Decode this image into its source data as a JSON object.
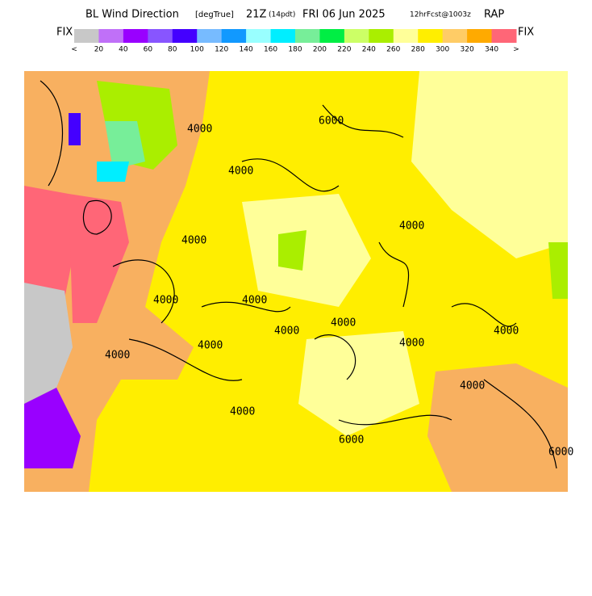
{
  "header": {
    "title": "BL Wind Direction",
    "units": "[degTrue]",
    "valid": "21Z",
    "local": "(14pdt)",
    "date": "FRI 06 Jun 2025",
    "forecast": "12hrFcst@1003z",
    "model": "RAP"
  },
  "legend": {
    "left_label": "FIX",
    "right_label": "FIX",
    "colors": [
      "#c8c8c8",
      "#c070f8",
      "#9900ff",
      "#8855ff",
      "#4400ff",
      "#77bbff",
      "#1199ff",
      "#99ffff",
      "#00eeff",
      "#77ee99",
      "#00ee44",
      "#ccff66",
      "#aaee00",
      "#ffff99",
      "#ffee00",
      "#ffcc66",
      "#ffaa00",
      "#ff6677"
    ],
    "labels": [
      "<",
      "20",
      "40",
      "60",
      "80",
      "100",
      "120",
      "140",
      "160",
      "180",
      "200",
      "220",
      "240",
      "260",
      "280",
      "300",
      "320",
      "340",
      ">"
    ]
  },
  "map": {
    "contour_labels": [
      "4000",
      "4000",
      "4000",
      "4000",
      "4000",
      "4000",
      "4000",
      "4000",
      "4000",
      "4000",
      "4000",
      "4000",
      "6000",
      "6000",
      "6000",
      "4000",
      "4000"
    ]
  }
}
